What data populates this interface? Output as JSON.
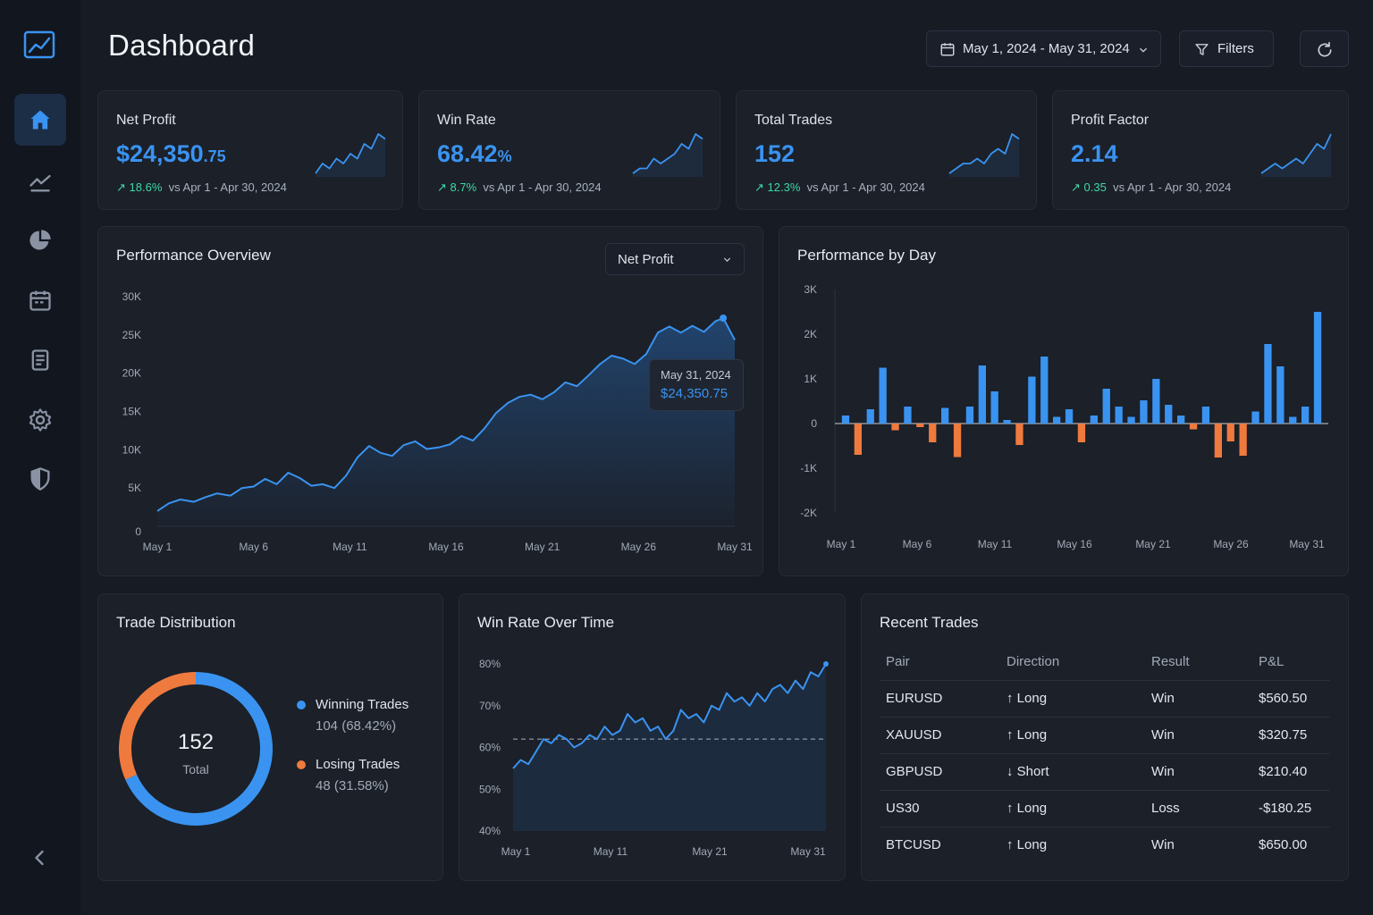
{
  "header": {
    "title": "Dashboard",
    "date_range": "May 1, 2024 - May 31, 2024",
    "filters_label": "Filters",
    "icons": {
      "calendar": "calendar-icon",
      "chevron": "chevron-down-icon",
      "filter": "filter-icon",
      "refresh": "refresh-icon"
    }
  },
  "sidebar": {
    "items": [
      {
        "name": "home",
        "icon": "home-icon",
        "active": true
      },
      {
        "name": "analytics",
        "icon": "trend-icon",
        "active": false
      },
      {
        "name": "reports",
        "icon": "pie-chart-icon",
        "active": false
      },
      {
        "name": "calendar",
        "icon": "calendar-icon",
        "active": false
      },
      {
        "name": "journal",
        "icon": "document-icon",
        "active": false
      },
      {
        "name": "settings",
        "icon": "gear-icon",
        "active": false
      },
      {
        "name": "security",
        "icon": "shield-icon",
        "active": false
      }
    ]
  },
  "kpis": [
    {
      "label": "Net Profit",
      "value_main": "$24,350",
      "value_sub": ".75",
      "delta": "18.6%",
      "compare": "vs Apr 1 - Apr 30, 2024",
      "trend": [
        2,
        4,
        3,
        5,
        4,
        6,
        5,
        8,
        7,
        10,
        9
      ]
    },
    {
      "label": "Win Rate",
      "value_main": "68.42",
      "value_sub": "%",
      "delta": "8.7%",
      "compare": "vs Apr 1 - Apr 30, 2024",
      "trend": [
        2,
        3,
        3,
        5,
        4,
        5,
        6,
        8,
        7,
        10,
        9
      ]
    },
    {
      "label": "Total Trades",
      "value_main": "152",
      "value_sub": "",
      "delta": "12.3%",
      "compare": "vs Apr 1 - Apr 30, 2024",
      "trend": [
        2,
        3,
        4,
        4,
        5,
        4,
        6,
        7,
        6,
        10,
        9
      ]
    },
    {
      "label": "Profit Factor",
      "value_main": "2.14",
      "value_sub": "",
      "delta": "0.35",
      "compare": "vs Apr 1 - Apr 30, 2024",
      "trend": [
        2,
        3,
        4,
        3,
        4,
        5,
        4,
        6,
        8,
        7,
        10
      ]
    }
  ],
  "performance_overview": {
    "title": "Performance Overview",
    "metric_select": "Net Profit",
    "tooltip_date": "May 31, 2024",
    "tooltip_value": "$24,350.75"
  },
  "performance_by_day": {
    "title": "Performance by Day"
  },
  "trade_distribution": {
    "title": "Trade Distribution",
    "total": "152",
    "total_label": "Total",
    "winning_label": "Winning Trades",
    "winning_value": "104 (68.42%)",
    "losing_label": "Losing Trades",
    "losing_value": "48 (31.58%)"
  },
  "win_rate_over_time": {
    "title": "Win Rate Over Time"
  },
  "recent_trades": {
    "title": "Recent Trades",
    "columns": [
      "Pair",
      "Direction",
      "Result",
      "P&L"
    ],
    "rows": [
      {
        "pair": "EURUSD",
        "direction": "Long",
        "result": "Win",
        "pnl": "$560.50"
      },
      {
        "pair": "XAUUSD",
        "direction": "Long",
        "result": "Win",
        "pnl": "$320.75"
      },
      {
        "pair": "GBPUSD",
        "direction": "Short",
        "result": "Win",
        "pnl": "$210.40"
      },
      {
        "pair": "US30",
        "direction": "Long",
        "result": "Loss",
        "pnl": "-$180.25"
      },
      {
        "pair": "BTCUSD",
        "direction": "Long",
        "result": "Win",
        "pnl": "$650.00"
      }
    ]
  },
  "colors": {
    "accent": "#3a93f0",
    "loss": "#ef7a3e",
    "positive": "#3fd9a6",
    "card": "#1b2029",
    "background": "#161b24"
  },
  "chart_data": [
    {
      "type": "area",
      "yticks": [
        "30K",
        "25K",
        "20K",
        "15K",
        "10K",
        "5K",
        "0"
      ],
      "ylim": [
        0,
        30000
      ],
      "xticks": [
        "May 1",
        "May 6",
        "May 11",
        "May 16",
        "May 21",
        "May 26",
        "May 31"
      ],
      "x": [
        1,
        1.6,
        2.2,
        2.9,
        3.5,
        4.1,
        4.8,
        5.4,
        6,
        6.6,
        7.2,
        7.8,
        8.4,
        9,
        9.6,
        10.2,
        10.8,
        11.4,
        12,
        12.6,
        13.2,
        13.8,
        14.4,
        15,
        15.6,
        16.2,
        16.8,
        17.4,
        18,
        18.6,
        19.2,
        19.8,
        20.4,
        21,
        21.6,
        22.2,
        22.8,
        23.4,
        24,
        24.6,
        25.2,
        25.8,
        26.4,
        27,
        27.6,
        28.2,
        28.8,
        29.4,
        30,
        30.4,
        31
      ],
      "series": [
        {
          "values": [
            2000,
            3000,
            3500,
            3200,
            3800,
            4300,
            4000,
            5000,
            5200,
            6200,
            5500,
            7000,
            6300,
            5300,
            5500,
            5000,
            6600,
            9000,
            10500,
            9600,
            9200,
            10600,
            11100,
            10100,
            10300,
            10700,
            11800,
            11200,
            12800,
            14800,
            16100,
            16900,
            17200,
            16600,
            17500,
            18800,
            18300,
            19700,
            21200,
            22300,
            21900,
            21200,
            22500,
            25300,
            26100,
            25300,
            26200,
            25400,
            26800,
            27200,
            24350.75
          ]
        }
      ]
    },
    {
      "type": "bar",
      "yticks": [
        "3K",
        "2K",
        "1K",
        "0",
        "-1K",
        "-2K"
      ],
      "ylim": [
        -2000,
        3000
      ],
      "xticks": [
        "May 1",
        "May 6",
        "May 11",
        "May 16",
        "May 21",
        "May 26",
        "May 31"
      ],
      "bars": [
        180,
        -700,
        320,
        1250,
        -150,
        380,
        -80,
        -420,
        350,
        -750,
        380,
        1300,
        720,
        80,
        -480,
        1050,
        1500,
        150,
        320,
        -420,
        180,
        780,
        380,
        150,
        520,
        1000,
        420,
        180,
        -130,
        380,
        -760,
        -400,
        -720,
        270,
        1780,
        1280,
        150,
        380,
        2500
      ]
    },
    {
      "type": "pie",
      "slices": [
        {
          "label": "Winning Trades",
          "value": 104
        },
        {
          "label": "Losing Trades",
          "value": 48
        }
      ]
    },
    {
      "type": "line",
      "yticks": [
        "80%",
        "70%",
        "60%",
        "50%",
        "40%"
      ],
      "ylim": [
        40,
        80
      ],
      "xticks": [
        "May 1",
        "May 11",
        "May 21",
        "May 31"
      ],
      "reference": 62,
      "series": [
        {
          "values": [
            55,
            57,
            56,
            59,
            62,
            61,
            63,
            62,
            60,
            61,
            63,
            62,
            65,
            63,
            64,
            68,
            66,
            67,
            64,
            65,
            62,
            64,
            69,
            67,
            68,
            66,
            70,
            69,
            73,
            71,
            72,
            70,
            73,
            71,
            74,
            75,
            73,
            76,
            74,
            78,
            77,
            80
          ]
        }
      ]
    }
  ]
}
